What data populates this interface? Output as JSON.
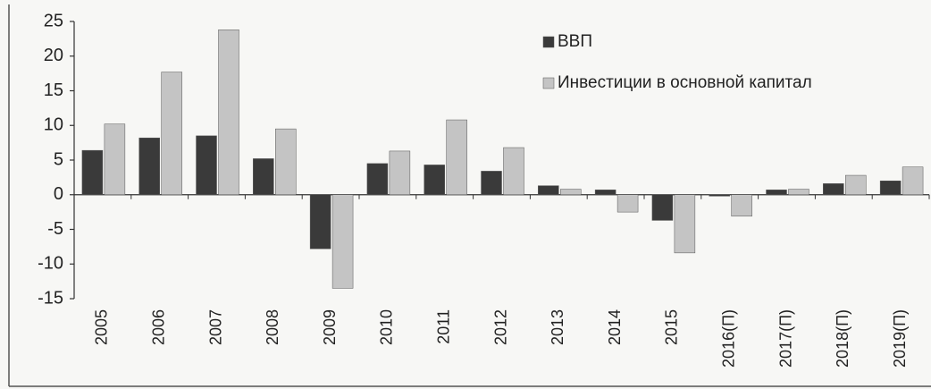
{
  "chart_data": {
    "type": "bar",
    "categories": [
      "2005",
      "2006",
      "2007",
      "2008",
      "2009",
      "2010",
      "2011",
      "2012",
      "2013",
      "2014",
      "2015",
      "2016(П)",
      "2017(П)",
      "2018(П)",
      "2019(П)"
    ],
    "series": [
      {
        "name": "ВВП",
        "color": "#3a3a3a",
        "values": [
          6.4,
          8.2,
          8.5,
          5.2,
          -7.8,
          4.5,
          4.3,
          3.4,
          1.3,
          0.7,
          -3.7,
          -0.2,
          0.7,
          1.6,
          2.0
        ]
      },
      {
        "name": "Инвестиции в основной капитал",
        "color": "#c4c4c4",
        "values": [
          10.2,
          17.7,
          23.8,
          9.5,
          -13.5,
          6.3,
          10.8,
          6.8,
          0.8,
          -2.5,
          -8.4,
          -3.1,
          0.8,
          2.8,
          4.0
        ]
      }
    ],
    "ylim": [
      -15,
      25
    ],
    "yticks": [
      -15,
      -10,
      -5,
      0,
      5,
      10,
      15,
      20,
      25
    ],
    "legend": "top-right"
  }
}
